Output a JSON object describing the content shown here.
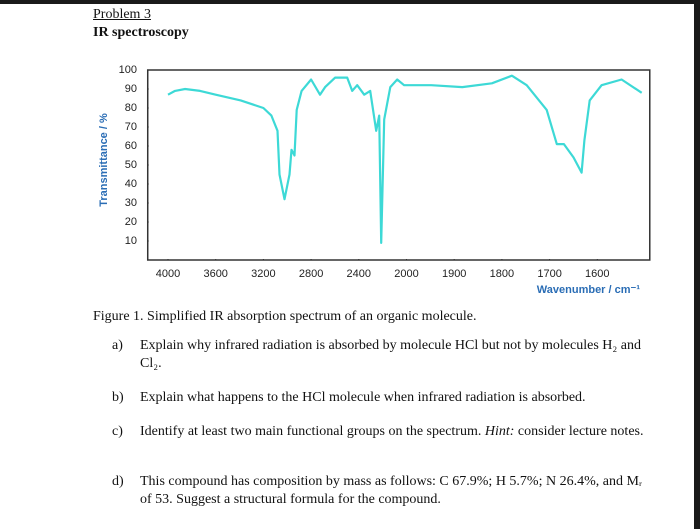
{
  "header": {
    "problem": "Problem 3",
    "title": "IR spectroscopy"
  },
  "chart_data": {
    "type": "line",
    "ylabel": "Transmittance / %",
    "xlabel": "Wavenumber / cm⁻¹",
    "x": [
      4000,
      3941,
      3857,
      3731,
      3600,
      3390,
      3200,
      3133,
      3082,
      3065,
      3023,
      2981,
      2964,
      2939,
      2921,
      2880,
      2800,
      2725,
      2683,
      2598,
      2497,
      2455,
      2413,
      2355,
      2304,
      2254,
      2229,
      2212,
      2187,
      2136,
      2078,
      2020,
      1948,
      1883,
      1821,
      1779,
      1748,
      1706,
      1685,
      1670,
      1650,
      1633,
      1627,
      1616,
      1591,
      1549,
      1507
    ],
    "values": [
      87,
      89,
      90,
      89,
      87,
      84,
      80,
      76,
      68,
      45,
      32,
      45,
      58,
      55,
      79,
      89,
      95,
      87,
      91,
      96,
      96,
      89,
      92,
      87,
      89,
      68,
      76,
      9,
      74,
      91,
      95,
      92,
      92,
      91,
      93,
      97,
      92,
      79,
      61,
      61,
      54,
      46,
      63,
      84,
      92,
      95,
      88
    ],
    "color": "#3dd9d6",
    "xlim": [
      4170,
      1490
    ],
    "xticks": [
      4000,
      3600,
      3200,
      2800,
      2400,
      2000,
      1900,
      1800,
      1700,
      1600
    ],
    "ylim": [
      0,
      100
    ],
    "yticks": [
      10,
      20,
      30,
      40,
      50,
      60,
      70,
      80,
      90,
      100
    ]
  },
  "caption": "Figure 1. Simplified IR absorption spectrum of an organic molecule.",
  "questions": [
    {
      "label": "a)",
      "text": "Explain why infrared radiation is absorbed by molecule HCl but not by molecules H₂ and Cl₂."
    },
    {
      "label": "b)",
      "text": "Explain what happens to the HCl molecule when infrared radiation is absorbed."
    },
    {
      "label": "c)",
      "text": "Identify at least two main functional groups on the spectrum.",
      "hint": "Hint:",
      "rest": "consider lecture notes."
    },
    {
      "label": "d)",
      "text": "This compound has composition by mass as follows: C 67.9%; H 5.7%; N 26.4%, and Mᵣ of 53. Suggest a structural formula for the compound."
    }
  ]
}
